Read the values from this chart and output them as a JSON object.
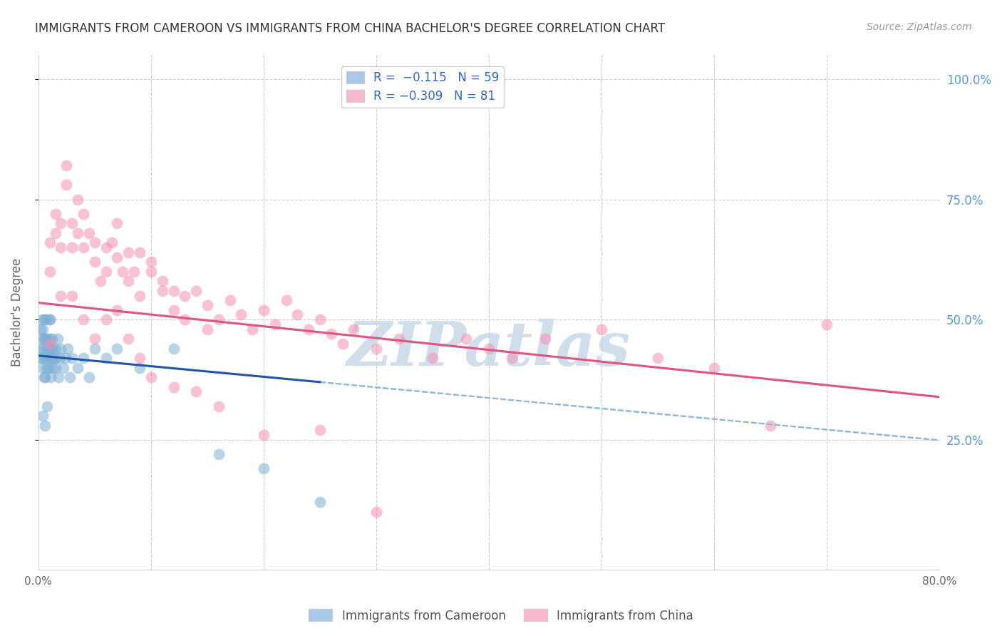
{
  "title": "IMMIGRANTS FROM CAMEROON VS IMMIGRANTS FROM CHINA BACHELOR'S DEGREE CORRELATION CHART",
  "source": "Source: ZipAtlas.com",
  "ylabel": "Bachelor's Degree",
  "xlim": [
    0.0,
    0.8
  ],
  "ylim": [
    -0.02,
    1.05
  ],
  "right_ytick_labels": [
    "25.0%",
    "50.0%",
    "75.0%",
    "100.0%"
  ],
  "right_ytick_values": [
    0.25,
    0.5,
    0.75,
    1.0
  ],
  "cameroon_color": "#7bafd4",
  "china_color": "#f48fb1",
  "cameroon_trend_color": "#2255aa",
  "china_trend_color": "#e05580",
  "dashed_line_color": "#90b8d8",
  "watermark": "ZIPatlas",
  "watermark_color": "#c8d8e8",
  "cam_trend_intercept": 0.425,
  "cam_trend_slope": -0.22,
  "chi_trend_intercept": 0.535,
  "chi_trend_slope": -0.245,
  "cameroon_data_x": [
    0.001,
    0.002,
    0.002,
    0.003,
    0.003,
    0.003,
    0.004,
    0.004,
    0.004,
    0.005,
    0.005,
    0.005,
    0.006,
    0.006,
    0.006,
    0.007,
    0.007,
    0.007,
    0.008,
    0.008,
    0.009,
    0.009,
    0.01,
    0.01,
    0.01,
    0.011,
    0.011,
    0.012,
    0.012,
    0.013,
    0.013,
    0.014,
    0.015,
    0.015,
    0.016,
    0.017,
    0.018,
    0.019,
    0.02,
    0.022,
    0.024,
    0.026,
    0.028,
    0.03,
    0.035,
    0.04,
    0.045,
    0.05,
    0.06,
    0.07,
    0.09,
    0.12,
    0.16,
    0.2,
    0.25,
    0.004,
    0.006,
    0.008,
    0.01
  ],
  "cameroon_data_y": [
    0.42,
    0.44,
    0.48,
    0.46,
    0.5,
    0.42,
    0.44,
    0.4,
    0.48,
    0.46,
    0.38,
    0.5,
    0.42,
    0.38,
    0.46,
    0.44,
    0.5,
    0.4,
    0.42,
    0.46,
    0.44,
    0.4,
    0.42,
    0.46,
    0.5,
    0.44,
    0.38,
    0.42,
    0.46,
    0.4,
    0.44,
    0.42,
    0.4,
    0.44,
    0.42,
    0.46,
    0.38,
    0.42,
    0.44,
    0.4,
    0.42,
    0.44,
    0.38,
    0.42,
    0.4,
    0.42,
    0.38,
    0.44,
    0.42,
    0.44,
    0.4,
    0.44,
    0.22,
    0.19,
    0.12,
    0.3,
    0.28,
    0.32,
    0.5
  ],
  "china_data_x": [
    0.01,
    0.01,
    0.015,
    0.015,
    0.02,
    0.02,
    0.025,
    0.025,
    0.03,
    0.03,
    0.035,
    0.035,
    0.04,
    0.04,
    0.045,
    0.05,
    0.05,
    0.055,
    0.06,
    0.06,
    0.065,
    0.07,
    0.07,
    0.075,
    0.08,
    0.08,
    0.085,
    0.09,
    0.09,
    0.1,
    0.1,
    0.11,
    0.11,
    0.12,
    0.12,
    0.13,
    0.13,
    0.14,
    0.15,
    0.15,
    0.16,
    0.17,
    0.18,
    0.19,
    0.2,
    0.21,
    0.22,
    0.23,
    0.24,
    0.25,
    0.26,
    0.27,
    0.28,
    0.3,
    0.32,
    0.35,
    0.38,
    0.4,
    0.42,
    0.45,
    0.5,
    0.55,
    0.6,
    0.65,
    0.7,
    0.01,
    0.02,
    0.03,
    0.04,
    0.05,
    0.06,
    0.07,
    0.08,
    0.09,
    0.1,
    0.12,
    0.14,
    0.16,
    0.2,
    0.25,
    0.3
  ],
  "china_data_y": [
    0.6,
    0.66,
    0.68,
    0.72,
    0.7,
    0.65,
    0.78,
    0.82,
    0.7,
    0.65,
    0.75,
    0.68,
    0.72,
    0.65,
    0.68,
    0.62,
    0.66,
    0.58,
    0.65,
    0.6,
    0.66,
    0.63,
    0.7,
    0.6,
    0.58,
    0.64,
    0.6,
    0.64,
    0.55,
    0.6,
    0.62,
    0.56,
    0.58,
    0.52,
    0.56,
    0.55,
    0.5,
    0.56,
    0.53,
    0.48,
    0.5,
    0.54,
    0.51,
    0.48,
    0.52,
    0.49,
    0.54,
    0.51,
    0.48,
    0.5,
    0.47,
    0.45,
    0.48,
    0.44,
    0.46,
    0.42,
    0.46,
    0.44,
    0.42,
    0.46,
    0.48,
    0.42,
    0.4,
    0.28,
    0.49,
    0.45,
    0.55,
    0.55,
    0.5,
    0.46,
    0.5,
    0.52,
    0.46,
    0.42,
    0.38,
    0.36,
    0.35,
    0.32,
    0.26,
    0.27,
    0.1
  ]
}
